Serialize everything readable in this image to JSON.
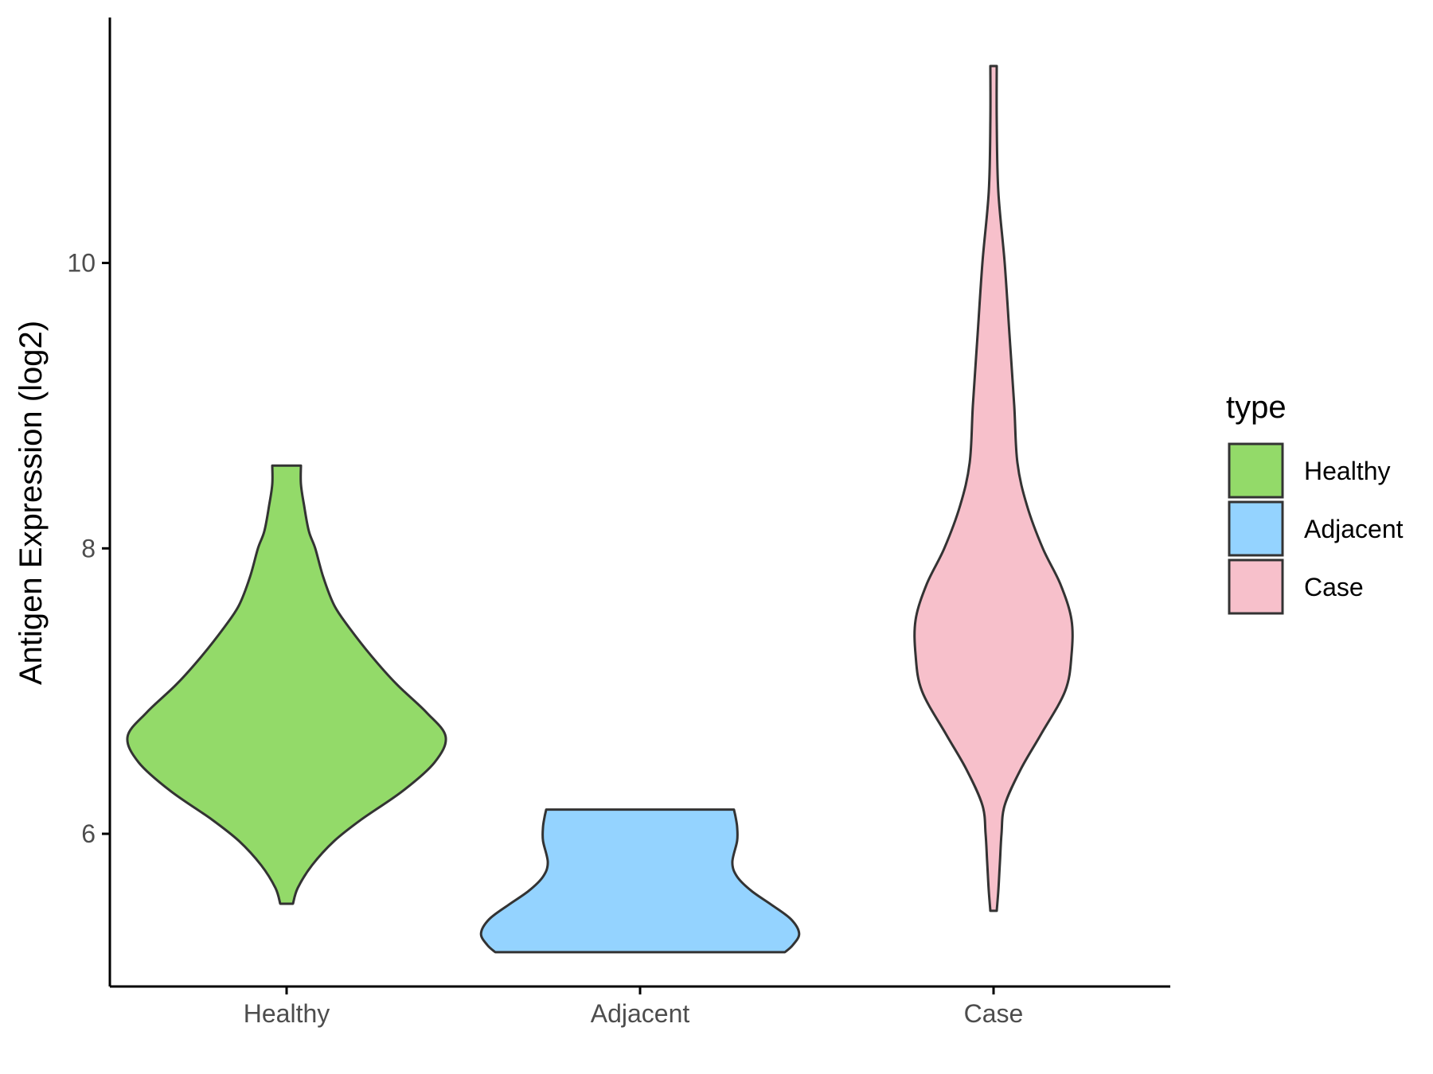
{
  "chart_data": {
    "type": "violin",
    "ylabel": "Antigen Expression (log2)",
    "xlabel": "",
    "categories": [
      "Healthy",
      "Adjacent",
      "Case"
    ],
    "ylim": [
      4.93,
      11.72
    ],
    "yticks": [
      6,
      8,
      10
    ],
    "grid": false,
    "legend": {
      "title": "type",
      "position": "right",
      "entries": [
        "Healthy",
        "Adjacent",
        "Case"
      ]
    },
    "colors": {
      "Healthy": "#93da69",
      "Adjacent": "#94d3ff",
      "Case": "#f7c0cb",
      "outline": "#333333",
      "axis": "#000000"
    },
    "series": [
      {
        "category": "Healthy",
        "min": 5.51,
        "max": 8.58,
        "density_profile": [
          [
            5.51,
            0.04
          ],
          [
            5.62,
            0.07
          ],
          [
            5.78,
            0.16
          ],
          [
            5.95,
            0.3
          ],
          [
            6.1,
            0.47
          ],
          [
            6.3,
            0.73
          ],
          [
            6.5,
            0.93
          ],
          [
            6.68,
            1.0
          ],
          [
            6.85,
            0.88
          ],
          [
            7.05,
            0.69
          ],
          [
            7.25,
            0.53
          ],
          [
            7.45,
            0.39
          ],
          [
            7.6,
            0.3
          ],
          [
            7.8,
            0.23
          ],
          [
            8.0,
            0.18
          ],
          [
            8.12,
            0.14
          ],
          [
            8.3,
            0.11
          ],
          [
            8.45,
            0.09
          ],
          [
            8.58,
            0.09
          ]
        ]
      },
      {
        "category": "Adjacent",
        "min": 5.17,
        "max": 6.17,
        "density_profile": [
          [
            5.17,
            0.91
          ],
          [
            5.22,
            0.96
          ],
          [
            5.3,
            1.0
          ],
          [
            5.4,
            0.95
          ],
          [
            5.5,
            0.83
          ],
          [
            5.6,
            0.7
          ],
          [
            5.7,
            0.61
          ],
          [
            5.8,
            0.58
          ],
          [
            5.95,
            0.61
          ],
          [
            6.05,
            0.61
          ],
          [
            6.12,
            0.6
          ],
          [
            6.17,
            0.59
          ]
        ]
      },
      {
        "category": "Case",
        "min": 5.46,
        "max": 11.38,
        "density_profile": [
          [
            5.46,
            0.02
          ],
          [
            5.6,
            0.03
          ],
          [
            5.8,
            0.04
          ],
          [
            6.0,
            0.05
          ],
          [
            6.2,
            0.07
          ],
          [
            6.45,
            0.17
          ],
          [
            6.7,
            0.3
          ],
          [
            7.0,
            0.45
          ],
          [
            7.25,
            0.49
          ],
          [
            7.5,
            0.49
          ],
          [
            7.75,
            0.42
          ],
          [
            8.0,
            0.31
          ],
          [
            8.3,
            0.21
          ],
          [
            8.6,
            0.15
          ],
          [
            9.0,
            0.13
          ],
          [
            9.5,
            0.1
          ],
          [
            10.0,
            0.07
          ],
          [
            10.5,
            0.03
          ],
          [
            11.0,
            0.02
          ],
          [
            11.38,
            0.02
          ]
        ]
      }
    ]
  }
}
